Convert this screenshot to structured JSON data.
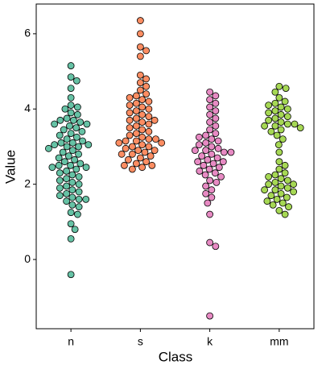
{
  "chart_data": {
    "type": "beeswarm",
    "x_label": "Class",
    "y_label": "Value",
    "ylim": [
      -1.84,
      6.79
    ],
    "yticks": [
      0,
      2,
      4,
      6
    ],
    "series": [
      {
        "name": "n",
        "color": "#66c2a5",
        "values": [
          -0.4,
          0.55,
          0.8,
          0.95,
          1.2,
          1.25,
          1.4,
          1.45,
          1.55,
          1.6,
          1.6,
          1.65,
          1.7,
          1.75,
          1.8,
          1.85,
          1.9,
          1.95,
          2.0,
          2.05,
          2.1,
          2.15,
          2.2,
          2.25,
          2.3,
          2.35,
          2.4,
          2.45,
          2.45,
          2.5,
          2.5,
          2.55,
          2.6,
          2.65,
          2.7,
          2.75,
          2.8,
          2.85,
          2.9,
          2.95,
          3.0,
          3.0,
          3.05,
          3.05,
          3.1,
          3.1,
          3.15,
          3.2,
          3.25,
          3.3,
          3.35,
          3.4,
          3.45,
          3.5,
          3.55,
          3.6,
          3.6,
          3.65,
          3.7,
          3.7,
          3.75,
          3.85,
          3.9,
          4.0,
          4.05,
          4.1,
          4.3,
          4.55,
          4.75,
          4.85,
          5.15
        ]
      },
      {
        "name": "s",
        "color": "#fc8d62",
        "values": [
          2.4,
          2.45,
          2.5,
          2.5,
          2.55,
          2.6,
          2.65,
          2.7,
          2.75,
          2.8,
          2.8,
          2.85,
          2.9,
          2.9,
          2.95,
          3.0,
          3.0,
          3.05,
          3.1,
          3.1,
          3.15,
          3.15,
          3.2,
          3.2,
          3.25,
          3.3,
          3.35,
          3.4,
          3.45,
          3.5,
          3.55,
          3.6,
          3.65,
          3.7,
          3.7,
          3.75,
          3.8,
          3.85,
          3.9,
          3.95,
          4.0,
          4.05,
          4.1,
          4.15,
          4.2,
          4.25,
          4.3,
          4.35,
          4.4,
          4.5,
          4.6,
          4.7,
          4.8,
          4.9,
          5.4,
          5.55,
          5.65,
          6.0,
          6.35
        ]
      },
      {
        "name": "k",
        "color": "#e78ac3",
        "values": [
          -1.5,
          0.35,
          0.45,
          1.2,
          1.5,
          1.65,
          1.75,
          1.85,
          1.95,
          2.05,
          2.1,
          2.2,
          2.25,
          2.3,
          2.35,
          2.4,
          2.45,
          2.5,
          2.55,
          2.6,
          2.6,
          2.65,
          2.7,
          2.75,
          2.8,
          2.85,
          2.85,
          2.9,
          2.9,
          2.95,
          3.0,
          3.05,
          3.1,
          3.15,
          3.2,
          3.25,
          3.3,
          3.35,
          3.45,
          3.55,
          3.65,
          3.75,
          3.85,
          3.95,
          4.05,
          4.15,
          4.25,
          4.35,
          4.45
        ]
      },
      {
        "name": "mm",
        "color": "#a6d854",
        "values": [
          1.2,
          1.3,
          1.4,
          1.45,
          1.5,
          1.55,
          1.6,
          1.65,
          1.7,
          1.75,
          1.8,
          1.85,
          1.85,
          1.9,
          1.95,
          2.0,
          2.0,
          2.05,
          2.1,
          2.15,
          2.2,
          2.25,
          2.3,
          2.4,
          2.5,
          2.6,
          2.85,
          3.05,
          3.2,
          3.3,
          3.4,
          3.45,
          3.5,
          3.55,
          3.55,
          3.6,
          3.6,
          3.65,
          3.7,
          3.75,
          3.8,
          3.85,
          3.9,
          3.95,
          4.0,
          4.05,
          4.1,
          4.15,
          4.2,
          4.3,
          4.45,
          4.55,
          4.6
        ]
      }
    ]
  }
}
